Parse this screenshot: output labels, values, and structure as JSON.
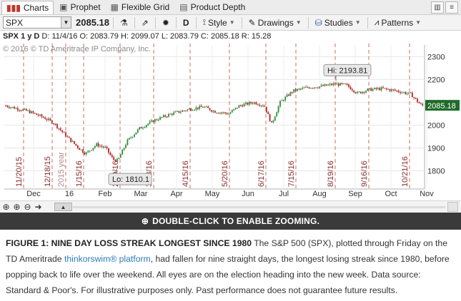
{
  "tabs": [
    {
      "label": "Charts",
      "icon": "bar-chart-icon",
      "active": true
    },
    {
      "label": "Prophet",
      "icon": "prophet-icon",
      "active": false
    },
    {
      "label": "Flexible Grid",
      "icon": "grid-icon",
      "active": false
    },
    {
      "label": "Product Depth",
      "icon": "depth-icon",
      "active": false
    }
  ],
  "toolbar": {
    "symbol": "SPX",
    "price": "2085.18",
    "timeframe": "D",
    "style_label": "Style",
    "drawings_label": "Drawings",
    "studies_label": "Studies",
    "patterns_label": "Patterns"
  },
  "infoline": {
    "prefix": "SPX 1 y D",
    "date": "D: 11/4/16",
    "open": "O: 2083.79",
    "high": "H: 2099.07",
    "low": "L: 2083.79",
    "close": "C: 2085.18",
    "range": "R: 15.28"
  },
  "copyright": "© 2016 © TD Ameritrade IP Company, Inc.",
  "zoom_notice": "DOUBLE-CLICK TO ENABLE ZOOMING.",
  "caption": {
    "title": "FIGURE 1: NINE DAY LOSS STREAK LONGEST SINCE 1980",
    "text1": " The S&P 500 (SPX), plotted through Friday on the TD Ameritrade ",
    "link": "thinkorswim® platform",
    "text2": ", had fallen for nine straight days, the longest losing streak since 1980, before popping back to life over the weekend. All eyes are on the election heading into the new week.  Data source: Standard & Poor's. For illustrative purposes only. Past performance does not guarantee future results."
  },
  "chart_data": {
    "type": "candlestick",
    "title": "",
    "xlabel": "",
    "ylabel": "",
    "ylim": [
      1720,
      2320
    ],
    "yticks": [
      "2300",
      "2200",
      "2100",
      "2000",
      "1900",
      "1800"
    ],
    "xticks": [
      "Dec",
      "16",
      "Feb",
      "Mar",
      "Apr",
      "May",
      "Jun",
      "Jul",
      "Aug",
      "Sep",
      "Oct",
      "Nov"
    ],
    "grid": true,
    "event_dates": [
      "11/20/15",
      "12/18/15",
      "2015 year",
      "1/15/16",
      "2/19/16",
      "3/18/16",
      "4/15/16",
      "5/20/16",
      "6/17/16",
      "7/15/16",
      "8/19/16",
      "9/16/16",
      "10/21/16"
    ],
    "annotations": {
      "high_label": "Hi: 2193.81",
      "low_label": "Lo: 1810.1",
      "last_price_label": "2085.18"
    },
    "series": [
      {
        "x": [
          "Nov",
          "Dec",
          "16",
          "Feb",
          "Mar",
          "Apr",
          "May",
          "Jun",
          "Jul",
          "Aug",
          "Sep",
          "Oct",
          "Nov"
        ],
        "values": [
          2085,
          2050,
          1935,
          1870,
          2000,
          2060,
          2065,
          2085,
          2160,
          2180,
          2150,
          2140,
          2085
        ]
      }
    ],
    "colors": {
      "up": "#2e8b3a",
      "down": "#b22222",
      "event_line": "#c0392b",
      "last_price_bg": "#1f6b2a"
    }
  }
}
